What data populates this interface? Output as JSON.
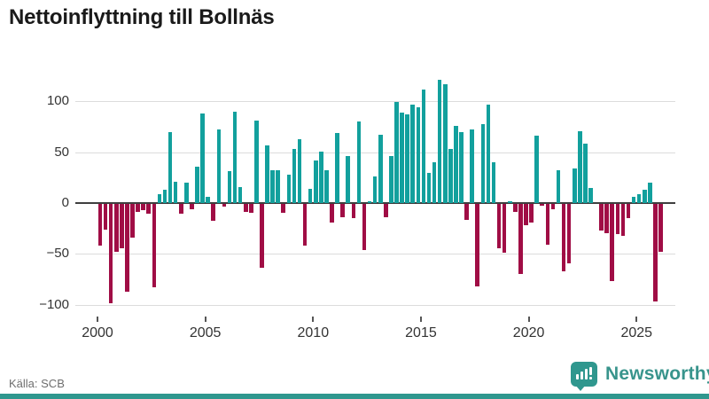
{
  "title": "Nettoinflyttning till Bollnäs",
  "source": "Källa: SCB",
  "branding": {
    "logo_text": "Newsworthy",
    "logo_icon": "bar-chart-badge-icon"
  },
  "colors": {
    "positive_bar": "#12a09d",
    "negative_bar": "#a00d45",
    "brand_teal": "#2f978e",
    "zero_axis": "#3f3f3f",
    "gridline": "#dcdcdc",
    "title_text": "#1a1a1a",
    "axis_text": "#333333",
    "source_text": "#6e6e6e"
  },
  "chart_data": {
    "type": "bar",
    "title": "Nettoinflyttning till Bollnäs",
    "frequency": "quarterly",
    "start_period": "2000-Q1",
    "end_period": "2026-Q1",
    "xlabel": "",
    "ylabel": "",
    "ylim": [
      -105,
      125
    ],
    "grid": true,
    "yticks": [
      100,
      50,
      0,
      -50,
      -100
    ],
    "ytick_labels": [
      "100",
      "50",
      "0",
      "−50",
      "−100"
    ],
    "xticks": [
      2000,
      2005,
      2010,
      2015,
      2020,
      2025
    ],
    "values": [
      -41,
      -25,
      -98,
      -47,
      -44,
      -86,
      -33,
      -8,
      -6,
      -10,
      -82,
      9,
      13,
      70,
      21,
      -10,
      20,
      -5,
      36,
      88,
      6,
      -17,
      72,
      -3,
      31,
      90,
      16,
      -8,
      -9,
      81,
      -63,
      57,
      32,
      32,
      -9,
      28,
      53,
      63,
      -41,
      14,
      42,
      51,
      32,
      -18,
      69,
      -13,
      46,
      -14,
      80,
      -45,
      2,
      26,
      67,
      -13,
      46,
      99,
      89,
      87,
      97,
      94,
      112,
      30,
      40,
      121,
      117,
      53,
      76,
      70,
      -16,
      72,
      -81,
      78,
      97,
      40,
      -44,
      -48,
      2,
      -8,
      -69,
      -21,
      -18,
      66,
      -2,
      -40,
      -5,
      32,
      -66,
      -58,
      34,
      71,
      58,
      15,
      0,
      -26,
      -29,
      -76,
      -30,
      -31,
      -14,
      6,
      9,
      13,
      20,
      -96,
      -47
    ]
  }
}
